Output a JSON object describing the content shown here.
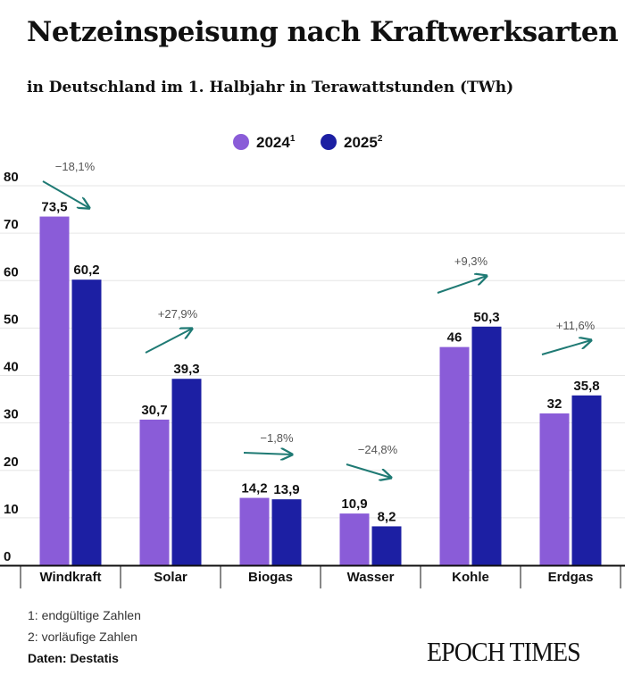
{
  "title": "Netzeinspeisung nach Kraftwerksarten",
  "subtitle": "in Deutschland im 1. Halbjahr in Terawattstunden (TWh)",
  "footnotes": [
    "1: endgültige Zahlen",
    "2: vorläufige Zahlen"
  ],
  "source": "Daten: Destatis",
  "logo": "EPOCH TIMES",
  "chart_data": {
    "type": "bar",
    "categories": [
      "Windkraft",
      "Solar",
      "Biogas",
      "Wasser",
      "Kohle",
      "Erdgas"
    ],
    "series": [
      {
        "name": "2024",
        "superscript": "1",
        "color": "#8a5cd8",
        "values": [
          73.5,
          30.7,
          14.2,
          10.9,
          46,
          32
        ],
        "labels": [
          "73,5",
          "30,7",
          "14,2",
          "10,9",
          "46",
          "32"
        ]
      },
      {
        "name": "2025",
        "superscript": "2",
        "color": "#1c1fa3",
        "values": [
          60.2,
          39.3,
          13.9,
          8.2,
          50.3,
          35.8
        ],
        "labels": [
          "60,2",
          "39,3",
          "13,9",
          "8,2",
          "50,3",
          "35,8"
        ]
      }
    ],
    "changes": [
      "−18,1%",
      "+27,9%",
      "−1,8%",
      "−24,8%",
      "+9,3%",
      "+11,6%"
    ],
    "change_color": "#1f7a74",
    "yticks": [
      "0",
      "10",
      "20",
      "30",
      "40",
      "50",
      "60",
      "70",
      "80"
    ],
    "ylim": [
      0,
      80
    ],
    "grid": true,
    "legend": "top-center"
  }
}
